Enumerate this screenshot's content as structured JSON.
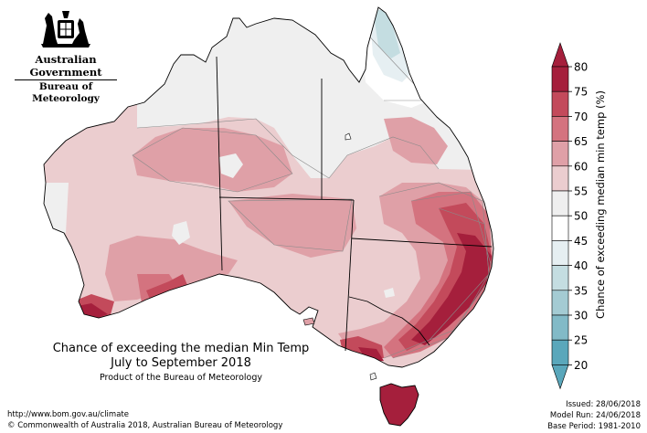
{
  "header": {
    "organisation": "Australian Government",
    "agency": "Bureau of Meteorology"
  },
  "caption": {
    "title": "Chance of exceeding the median Min Temp",
    "period": "July to September 2018",
    "credit": "Product of the Bureau of Meteorology"
  },
  "footer": {
    "url": "http://www.bom.gov.au/climate",
    "copyright": "© Commonwealth of Australia 2018, Australian Bureau of Meteorology",
    "issued": "Issued: 28/06/2018",
    "model_run": "Model Run: 24/06/2018",
    "base_period": "Base Period: 1981-2010"
  },
  "legend": {
    "title": "Chance of exceeding median min temp (%)",
    "ticks": [
      "80",
      "75",
      "70",
      "65",
      "60",
      "55",
      "50",
      "45",
      "40",
      "35",
      "30",
      "25",
      "20"
    ],
    "bands": [
      {
        "range": "75-80",
        "color": "#a51f3c"
      },
      {
        "range": "70-75",
        "color": "#c34a5b"
      },
      {
        "range": "65-70",
        "color": "#d4737f"
      },
      {
        "range": "60-65",
        "color": "#dfa0a7"
      },
      {
        "range": "55-60",
        "color": "#ebcdcf"
      },
      {
        "range": "50-55",
        "color": "#efefef"
      },
      {
        "range": "45-50",
        "color": "#ffffff"
      },
      {
        "range": "40-45",
        "color": "#e6eff2"
      },
      {
        "range": "35-40",
        "color": "#c4dde1"
      },
      {
        "range": "30-35",
        "color": "#a4cbd3"
      },
      {
        "range": "25-30",
        "color": "#82bac7"
      },
      {
        "range": "20-25",
        "color": "#5aa7bb"
      }
    ]
  }
}
